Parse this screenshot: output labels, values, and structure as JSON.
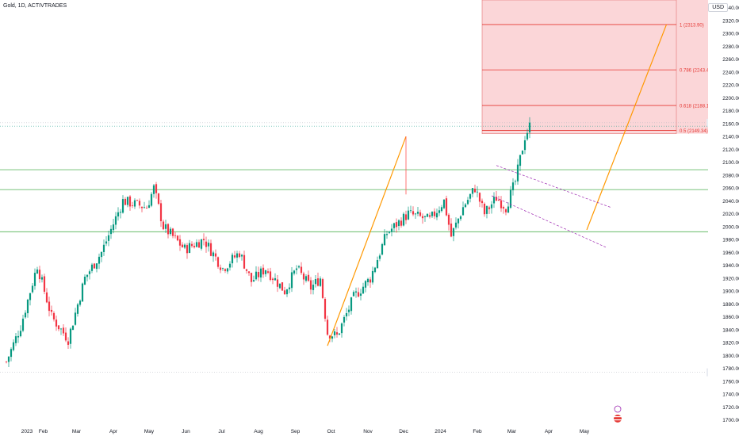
{
  "header": {
    "title": "Gold, 1D, ACTIVTRADES",
    "currency": "USD"
  },
  "chart_data": {
    "type": "candlestick",
    "x_ticks": [
      "2023",
      "Feb",
      "Mar",
      "Apr",
      "May",
      "Jun",
      "Jul",
      "Aug",
      "Sep",
      "Oct",
      "Nov",
      "Dec",
      "2024",
      "Feb",
      "Mar",
      "Apr",
      "May"
    ],
    "x_tick_days": [
      0,
      31,
      59,
      90,
      120,
      151,
      181,
      212,
      243,
      273,
      304,
      334,
      365,
      396,
      425,
      456,
      486
    ],
    "y_ticks": [
      1700,
      1720,
      1740,
      1760,
      1780,
      1800,
      1820,
      1840,
      1860,
      1880,
      1900,
      1920,
      1940,
      1960,
      1980,
      2000,
      2020,
      2040,
      2060,
      2080,
      2100,
      2120,
      2140,
      2160,
      2180,
      2200,
      2220,
      2240,
      2260,
      2280,
      2300,
      2320,
      2340
    ],
    "ylim": [
      1692,
      2352
    ],
    "levels": [
      {
        "name": "high",
        "label": "High",
        "value": "2161.30",
        "color": "#131722"
      },
      {
        "name": "close",
        "value": "2156.05",
        "sub": "09:26:01",
        "color": "#089981"
      },
      {
        "name": "res1",
        "value": "2088.40",
        "color": "#4caf50"
      },
      {
        "name": "res2",
        "value": "2057.47",
        "color": "#4caf50"
      },
      {
        "name": "sup1",
        "value": "1991.99",
        "color": "#4caf50"
      },
      {
        "name": "low",
        "label": "Low",
        "value": "1773.71",
        "color": "#131722"
      }
    ],
    "fib": [
      {
        "label": "1 (2313.90)",
        "value": 2313.9
      },
      {
        "label": "0.786 (2243.47)",
        "value": 2243.47
      },
      {
        "label": "0.618 (2188.18)",
        "value": 2188.18
      },
      {
        "label": "0.5 (2149.34)",
        "value": 2149.34
      }
    ],
    "anchors": [
      [
        0,
        1790
      ],
      [
        12,
        1845
      ],
      [
        26,
        1940
      ],
      [
        38,
        1860
      ],
      [
        52,
        1825
      ],
      [
        66,
        1920
      ],
      [
        80,
        1960
      ],
      [
        98,
        2040
      ],
      [
        118,
        2030
      ],
      [
        124,
        2060
      ],
      [
        132,
        2000
      ],
      [
        150,
        1965
      ],
      [
        166,
        1980
      ],
      [
        182,
        1935
      ],
      [
        196,
        1960
      ],
      [
        206,
        1915
      ],
      [
        218,
        1935
      ],
      [
        234,
        1900
      ],
      [
        244,
        1935
      ],
      [
        256,
        1905
      ],
      [
        264,
        1920
      ],
      [
        270,
        1835
      ],
      [
        278,
        1830
      ],
      [
        292,
        1890
      ],
      [
        306,
        1920
      ],
      [
        320,
        1990
      ],
      [
        338,
        2020
      ],
      [
        356,
        2010
      ],
      [
        368,
        2040
      ],
      [
        374,
        1985
      ],
      [
        384,
        2030
      ],
      [
        394,
        2060
      ],
      [
        402,
        2020
      ],
      [
        412,
        2045
      ],
      [
        420,
        2030
      ],
      [
        428,
        2070
      ],
      [
        436,
        2140
      ],
      [
        440,
        2156
      ]
    ],
    "candle_spacing": 2
  }
}
